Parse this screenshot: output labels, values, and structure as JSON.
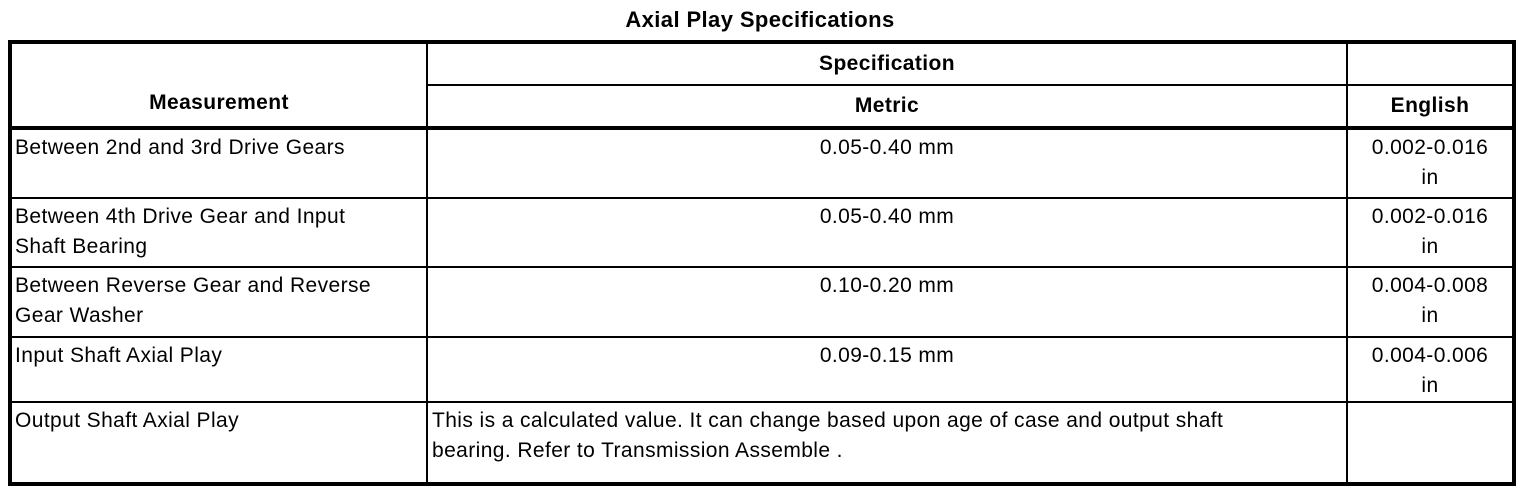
{
  "title": "Axial Play Specifications",
  "table": {
    "headers": {
      "measurement": "Measurement",
      "specification": "Specification",
      "metric": "Metric",
      "english": "English",
      "english_group": ""
    },
    "rows": [
      {
        "measurement": "Between 2nd and 3rd Drive Gears",
        "metric": "0.05-0.40 mm",
        "english": "0.002-0.016 in"
      },
      {
        "measurement": "Between 4th Drive Gear and Input Shaft Bearing",
        "metric": "0.05-0.40 mm",
        "english": "0.002-0.016 in"
      },
      {
        "measurement": "Between Reverse Gear and Reverse Gear Washer",
        "metric": "0.10-0.20 mm",
        "english": "0.004-0.008 in"
      },
      {
        "measurement": "Input Shaft Axial Play",
        "metric": "0.09-0.15 mm",
        "english": "0.004-0.006 in"
      },
      {
        "measurement": "Output Shaft Axial Play",
        "metric": "This is a calculated value. It can change based upon age of case and output shaft bearing. Refer to Transmission Assemble .",
        "english": ""
      }
    ]
  },
  "colors": {
    "text": "#000000",
    "border": "#000000",
    "background": "#ffffff"
  }
}
